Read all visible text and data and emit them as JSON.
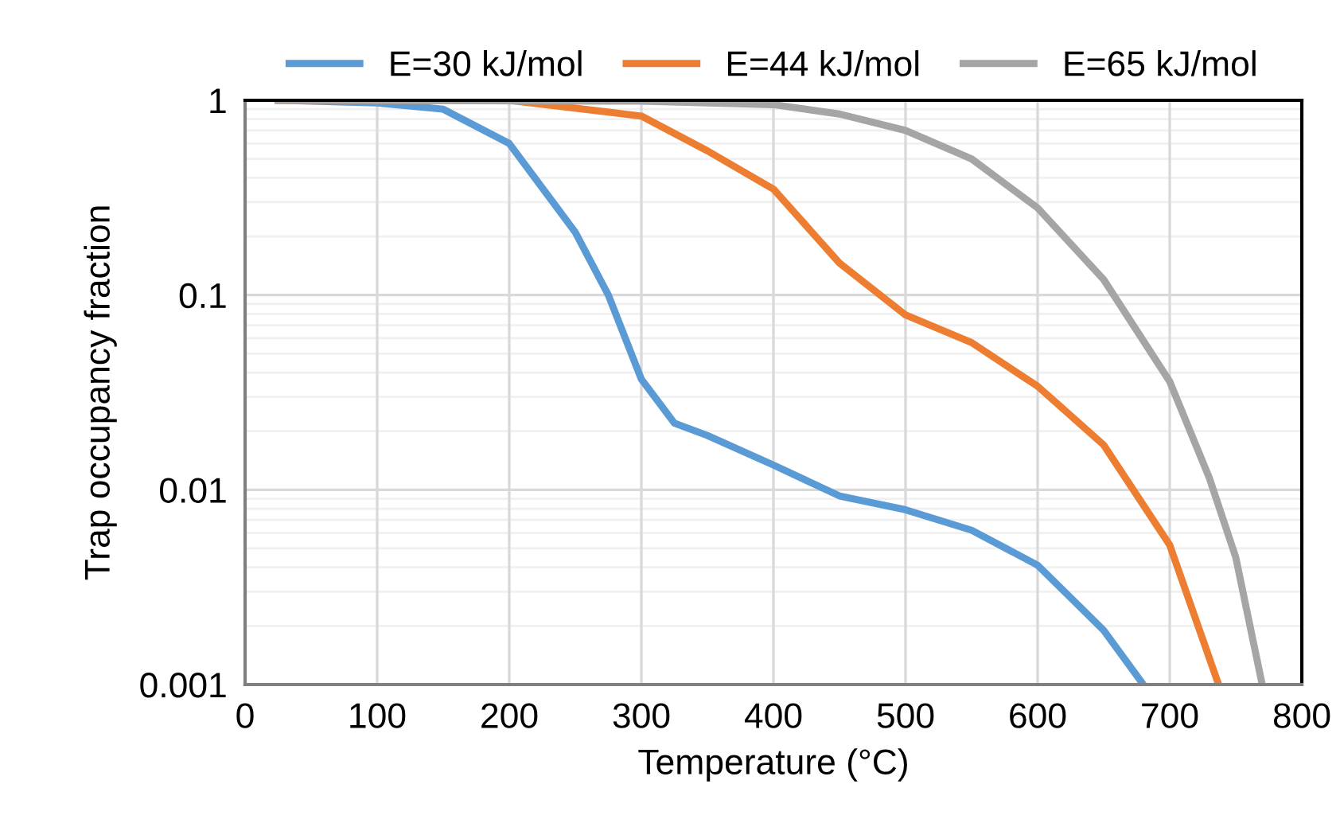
{
  "chart_data": {
    "type": "line",
    "xlabel": "Temperature (°C)",
    "ylabel": "Trap occupancy fraction",
    "x": [
      25,
      100,
      150,
      200,
      250,
      275,
      300,
      325,
      350,
      400,
      450,
      500,
      550,
      600,
      650,
      680
    ],
    "series": [
      {
        "name": "E=30 kJ/mol",
        "color": "#5b9bd5",
        "values": [
          1,
          0.97,
          0.9,
          0.6,
          0.21,
          0.1,
          0.037,
          0.022,
          0.019,
          0.0134,
          0.0093,
          0.0079,
          0.0062,
          0.0041,
          0.0019,
          0.001
        ]
      },
      {
        "name": "E=44 kJ/mol",
        "color": "#ed7d31",
        "x": [
          25,
          200,
          300,
          350,
          400,
          450,
          500,
          550,
          600,
          650,
          700,
          737
        ],
        "values": [
          1,
          1,
          0.83,
          0.55,
          0.35,
          0.146,
          0.079,
          0.057,
          0.034,
          0.017,
          0.0052,
          0.001
        ]
      },
      {
        "name": "E=65 kJ/mol",
        "color": "#a5a5a5",
        "x": [
          25,
          300,
          400,
          450,
          500,
          550,
          600,
          650,
          700,
          730,
          750,
          770
        ],
        "values": [
          1,
          0.99,
          0.95,
          0.85,
          0.7,
          0.5,
          0.28,
          0.12,
          0.036,
          0.0115,
          0.0045,
          0.001
        ]
      }
    ],
    "log": "y",
    "xlim": [
      0,
      800
    ],
    "xticks": [
      0,
      100,
      200,
      300,
      400,
      500,
      600,
      700,
      800
    ],
    "ylim": [
      0.001,
      1
    ],
    "yticks": [
      {
        "value": 0.001,
        "label": "0.001"
      },
      {
        "value": 0.01,
        "label": "0.01"
      },
      {
        "value": 0.1,
        "label": "0.1"
      },
      {
        "value": 1,
        "label": "1"
      }
    ],
    "grid": true,
    "legend": "top",
    "marker": "none",
    "line_style": "solid"
  }
}
